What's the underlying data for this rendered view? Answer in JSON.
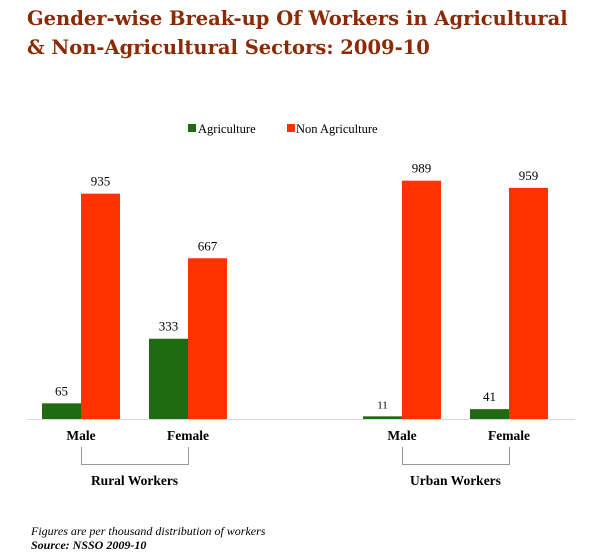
{
  "title_line1": "Gender-wise Break-up Of Workers in Agricultural",
  "title_line2": "& Non-Agricultural Sectors: 2009-10",
  "footnote": "Figures are per thousand distribution of workers",
  "source": "Source: NSSO 2009-10",
  "chart_data": {
    "type": "bar",
    "categories": [
      "Male",
      "Female",
      "Male",
      "Female"
    ],
    "groups": [
      {
        "label": "Rural Workers",
        "categories": [
          0,
          1
        ]
      },
      {
        "label": "Urban Workers",
        "categories": [
          2,
          3
        ]
      }
    ],
    "series": [
      {
        "name": "Agriculture",
        "color": "#1E6B12",
        "values": [
          65,
          333,
          11,
          41
        ]
      },
      {
        "name": "Non Agriculture",
        "color": "#FF3300",
        "values": [
          935,
          667,
          989,
          959
        ]
      }
    ],
    "ylim": [
      0,
      1000
    ],
    "legend_position": "top-center",
    "grid": false,
    "data_labels": true
  }
}
